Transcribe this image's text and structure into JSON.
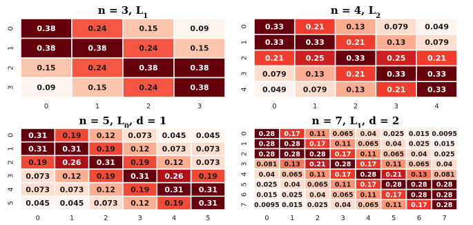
{
  "chart_data": [
    {
      "type": "heatmap",
      "title": "n = 3, L1",
      "title_parts": {
        "base": "n = 3, L",
        "sub": "1",
        "rest": ""
      },
      "x_ticks": [
        "0",
        "1",
        "2",
        "3"
      ],
      "y_ticks": [
        "0",
        "1",
        "2",
        "3"
      ],
      "values": [
        [
          0.38,
          0.24,
          0.15,
          0.09
        ],
        [
          0.38,
          0.38,
          0.24,
          0.15
        ],
        [
          0.15,
          0.24,
          0.38,
          0.38
        ],
        [
          0.09,
          0.15,
          0.24,
          0.38
        ]
      ],
      "labels": [
        [
          "0.38",
          "0.24",
          "0.15",
          "0.09"
        ],
        [
          "0.38",
          "0.38",
          "0.24",
          "0.15"
        ],
        [
          "0.15",
          "0.24",
          "0.38",
          "0.38"
        ],
        [
          "0.09",
          "0.15",
          "0.24",
          "0.38"
        ]
      ],
      "colormap": "Reds"
    },
    {
      "type": "heatmap",
      "title": "n = 4, L2",
      "title_parts": {
        "base": "n = 4, L",
        "sub": "2",
        "rest": ""
      },
      "x_ticks": [
        "0",
        "1",
        "2",
        "3",
        "4"
      ],
      "y_ticks": [
        "0",
        "1",
        "2",
        "3",
        "4"
      ],
      "values": [
        [
          0.33,
          0.21,
          0.13,
          0.079,
          0.049
        ],
        [
          0.33,
          0.33,
          0.21,
          0.13,
          0.079
        ],
        [
          0.21,
          0.25,
          0.33,
          0.25,
          0.21
        ],
        [
          0.079,
          0.13,
          0.21,
          0.33,
          0.33
        ],
        [
          0.049,
          0.079,
          0.13,
          0.21,
          0.33
        ]
      ],
      "labels": [
        [
          "0.33",
          "0.21",
          "0.13",
          "0.079",
          "0.049"
        ],
        [
          "0.33",
          "0.33",
          "0.21",
          "0.13",
          "0.079"
        ],
        [
          "0.21",
          "0.25",
          "0.33",
          "0.25",
          "0.21"
        ],
        [
          "0.079",
          "0.13",
          "0.21",
          "0.33",
          "0.33"
        ],
        [
          "0.049",
          "0.079",
          "0.13",
          "0.21",
          "0.33"
        ]
      ],
      "colormap": "Reds"
    },
    {
      "type": "heatmap",
      "title": "n = 5, L0, d = 1",
      "title_parts": {
        "base": "n = 5, L",
        "sub": "0",
        "rest": ", d = 1"
      },
      "x_ticks": [
        "0",
        "1",
        "2",
        "3",
        "4",
        "5"
      ],
      "y_ticks": [
        "0",
        "1",
        "2",
        "3",
        "4",
        "5"
      ],
      "values": [
        [
          0.31,
          0.19,
          0.12,
          0.073,
          0.045,
          0.045
        ],
        [
          0.31,
          0.31,
          0.19,
          0.12,
          0.073,
          0.073
        ],
        [
          0.19,
          0.26,
          0.31,
          0.19,
          0.12,
          0.073
        ],
        [
          0.073,
          0.12,
          0.19,
          0.31,
          0.26,
          0.19
        ],
        [
          0.073,
          0.073,
          0.12,
          0.19,
          0.31,
          0.31
        ],
        [
          0.045,
          0.045,
          0.073,
          0.12,
          0.19,
          0.31
        ]
      ],
      "labels": [
        [
          "0.31",
          "0.19",
          "0.12",
          "0.073",
          "0.045",
          "0.045"
        ],
        [
          "0.31",
          "0.31",
          "0.19",
          "0.12",
          "0.073",
          "0.073"
        ],
        [
          "0.19",
          "0.26",
          "0.31",
          "0.19",
          "0.12",
          "0.073"
        ],
        [
          "0.073",
          "0.12",
          "0.19",
          "0.31",
          "0.26",
          "0.19"
        ],
        [
          "0.073",
          "0.073",
          "0.12",
          "0.19",
          "0.31",
          "0.31"
        ],
        [
          "0.045",
          "0.045",
          "0.073",
          "0.12",
          "0.19",
          "0.31"
        ]
      ],
      "colormap": "Reds"
    },
    {
      "type": "heatmap",
      "title": "n = 7, L1, d = 2",
      "title_parts": {
        "base": "n = 7, L",
        "sub": "1",
        "rest": ", d = 2"
      },
      "x_ticks": [
        "0",
        "1",
        "2",
        "3",
        "4",
        "5",
        "6",
        "7"
      ],
      "y_ticks": [
        "0",
        "1",
        "2",
        "3",
        "4",
        "5",
        "6",
        "7"
      ],
      "values": [
        [
          0.28,
          0.17,
          0.11,
          0.065,
          0.04,
          0.025,
          0.015,
          0.0095
        ],
        [
          0.28,
          0.28,
          0.17,
          0.11,
          0.065,
          0.04,
          0.025,
          0.015
        ],
        [
          0.28,
          0.28,
          0.28,
          0.17,
          0.11,
          0.065,
          0.04,
          0.025
        ],
        [
          0.081,
          0.13,
          0.21,
          0.28,
          0.17,
          0.11,
          0.065,
          0.04
        ],
        [
          0.04,
          0.065,
          0.11,
          0.17,
          0.28,
          0.21,
          0.13,
          0.081
        ],
        [
          0.025,
          0.04,
          0.065,
          0.11,
          0.17,
          0.28,
          0.28,
          0.28
        ],
        [
          0.015,
          0.025,
          0.04,
          0.065,
          0.11,
          0.17,
          0.28,
          0.28
        ],
        [
          0.0095,
          0.015,
          0.025,
          0.04,
          0.065,
          0.11,
          0.17,
          0.28
        ]
      ],
      "labels": [
        [
          "0.28",
          "0.17",
          "0.11",
          "0.065",
          "0.04",
          "0.025",
          "0.015",
          "0.0095"
        ],
        [
          "0.28",
          "0.28",
          "0.17",
          "0.11",
          "0.065",
          "0.04",
          "0.025",
          "0.015"
        ],
        [
          "0.28",
          "0.28",
          "0.28",
          "0.17",
          "0.11",
          "0.065",
          "0.04",
          "0.025"
        ],
        [
          "0.081",
          "0.13",
          "0.21",
          "0.28",
          "0.17",
          "0.11",
          "0.065",
          "0.04"
        ],
        [
          "0.04",
          "0.065",
          "0.11",
          "0.17",
          "0.28",
          "0.21",
          "0.13",
          "0.081"
        ],
        [
          "0.025",
          "0.04",
          "0.065",
          "0.11",
          "0.17",
          "0.28",
          "0.28",
          "0.28"
        ],
        [
          "0.015",
          "0.025",
          "0.04",
          "0.065",
          "0.11",
          "0.17",
          "0.28",
          "0.28"
        ],
        [
          "0.0095",
          "0.015",
          "0.025",
          "0.04",
          "0.065",
          "0.11",
          "0.17",
          "0.28"
        ]
      ],
      "colormap": "Reds"
    }
  ]
}
